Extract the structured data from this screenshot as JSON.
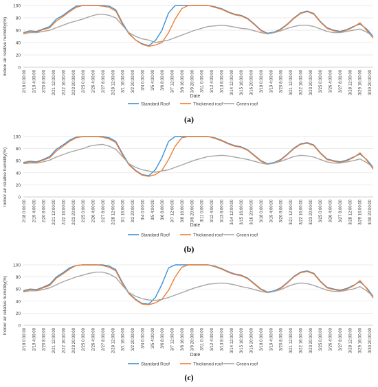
{
  "figure": {
    "x_tick_labels": [
      "2/18 0:00:00",
      "2/19 4:00:00",
      "2/20 8:00:00",
      "2/21 12:00:00",
      "2/22 16:00:00",
      "2/23 20:00:00",
      "2/25 0:00:00",
      "2/26 4:00:00",
      "2/27 8:00:00",
      "2/28 12:00:00",
      "3/1 16:00:00",
      "3/2 20:00:00",
      "3/4 0:00:00",
      "3/5 4:00:00",
      "3/6 8:00:00",
      "3/7 12:00:00",
      "3/8 16:00:00",
      "3/9 20:00:00",
      "3/11 0:00:00",
      "3/12 4:00:00",
      "3/13 8:00:00",
      "3/14 12:00:00",
      "3/15 16:00:00",
      "3/16 20:00:00",
      "3/18 0:00:00",
      "3/19 4:00:00",
      "3/20 8:00:00",
      "3/21 12:00:00",
      "3/22 16:00:00",
      "3/23 20:00:00",
      "3/25 0:00:00",
      "3/26 4:00:00",
      "3/27 8:00:00",
      "3/28 12:00:00",
      "3/29 16:00:00",
      "3/30 20:00:00"
    ],
    "y_ticks": [
      0,
      20,
      40,
      60,
      80,
      100
    ]
  },
  "chart_data": [
    {
      "type": "line",
      "caption": "(a)",
      "ylabel": "Indoor air relative humidity(%)",
      "xlabel": "Date",
      "ylim": [
        0,
        100
      ],
      "grid": true,
      "legend": "bottom",
      "series": [
        {
          "name": "Standard Roof",
          "color": "#3b8fd4",
          "values": [
            56,
            59,
            58,
            62,
            66,
            78,
            84,
            92,
            99,
            100,
            100,
            100,
            100,
            99,
            93,
            72,
            55,
            44,
            38,
            35,
            43,
            60,
            88,
            100,
            100,
            100,
            100,
            100,
            100,
            98,
            95,
            90,
            86,
            84,
            79,
            70,
            60,
            55,
            57,
            62,
            70,
            80,
            88,
            91,
            87,
            74,
            64,
            60,
            58,
            61,
            66,
            70,
            62,
            50
          ]
        },
        {
          "name": "Thickened roof",
          "color": "#ee7d31",
          "values": [
            55,
            58,
            57,
            61,
            64,
            75,
            82,
            90,
            97,
            100,
            100,
            100,
            99,
            97,
            91,
            70,
            54,
            44,
            37,
            34,
            36,
            40,
            56,
            78,
            95,
            100,
            100,
            100,
            100,
            97,
            94,
            89,
            85,
            83,
            78,
            69,
            59,
            54,
            56,
            61,
            69,
            79,
            87,
            90,
            86,
            73,
            63,
            59,
            57,
            60,
            65,
            72,
            60,
            47
          ]
        },
        {
          "name": "Green roof",
          "color": "#a5a5a5",
          "values": [
            54,
            56,
            56,
            58,
            60,
            64,
            68,
            72,
            75,
            78,
            82,
            85,
            86,
            84,
            80,
            68,
            56,
            50,
            46,
            44,
            40,
            42,
            44,
            48,
            52,
            56,
            60,
            63,
            66,
            67,
            68,
            67,
            65,
            63,
            62,
            59,
            56,
            54,
            56,
            59,
            63,
            66,
            68,
            68,
            66,
            62,
            58,
            56,
            56,
            58,
            60,
            62,
            57,
            50
          ]
        }
      ]
    },
    {
      "type": "line",
      "caption": "(b)",
      "ylabel": "Indoor air relative humidity(%)",
      "xlabel": "Date",
      "ylim": [
        0,
        100
      ],
      "grid": true,
      "legend": "bottom",
      "series": [
        {
          "name": "Standard Roof",
          "color": "#3b8fd4",
          "values": [
            57,
            59,
            58,
            62,
            67,
            79,
            86,
            94,
            99,
            100,
            100,
            100,
            100,
            98,
            92,
            72,
            54,
            44,
            37,
            35,
            45,
            65,
            92,
            100,
            100,
            100,
            100,
            100,
            100,
            98,
            94,
            89,
            85,
            83,
            78,
            69,
            60,
            55,
            57,
            62,
            71,
            81,
            88,
            90,
            86,
            73,
            63,
            60,
            58,
            61,
            66,
            71,
            62,
            49
          ]
        },
        {
          "name": "Thickened roof",
          "color": "#ee7d31",
          "values": [
            56,
            58,
            57,
            61,
            65,
            76,
            84,
            92,
            98,
            100,
            100,
            100,
            99,
            96,
            90,
            70,
            53,
            43,
            36,
            34,
            37,
            44,
            62,
            84,
            98,
            100,
            100,
            100,
            100,
            97,
            93,
            88,
            84,
            82,
            77,
            68,
            59,
            54,
            56,
            61,
            70,
            80,
            87,
            89,
            85,
            72,
            62,
            59,
            57,
            60,
            65,
            73,
            61,
            46
          ]
        },
        {
          "name": "Green roof",
          "color": "#a5a5a5",
          "values": [
            55,
            56,
            56,
            58,
            61,
            66,
            70,
            74,
            77,
            80,
            84,
            86,
            87,
            84,
            79,
            67,
            55,
            49,
            45,
            43,
            41,
            43,
            45,
            49,
            53,
            57,
            61,
            64,
            67,
            68,
            69,
            68,
            66,
            64,
            62,
            59,
            56,
            54,
            56,
            59,
            63,
            67,
            69,
            68,
            66,
            62,
            58,
            56,
            56,
            58,
            60,
            63,
            57,
            49
          ]
        }
      ]
    },
    {
      "type": "line",
      "caption": "(c)",
      "ylabel": "Indoor air relative humidity(%)",
      "xlabel": "Date",
      "ylim": [
        0,
        100
      ],
      "grid": true,
      "legend": "bottom",
      "series": [
        {
          "name": "Standard Roof",
          "color": "#3b8fd4",
          "values": [
            57,
            60,
            59,
            63,
            68,
            80,
            87,
            95,
            99,
            100,
            100,
            100,
            100,
            98,
            92,
            71,
            53,
            43,
            36,
            35,
            46,
            68,
            95,
            100,
            100,
            100,
            100,
            100,
            100,
            98,
            94,
            89,
            85,
            83,
            78,
            69,
            60,
            55,
            57,
            62,
            71,
            81,
            88,
            90,
            86,
            73,
            63,
            60,
            58,
            61,
            66,
            72,
            62,
            48
          ]
        },
        {
          "name": "Thickened roof",
          "color": "#ee7d31",
          "values": [
            56,
            59,
            58,
            62,
            66,
            78,
            85,
            93,
            99,
            100,
            100,
            100,
            99,
            96,
            90,
            69,
            52,
            42,
            35,
            34,
            37,
            43,
            58,
            80,
            96,
            100,
            100,
            100,
            100,
            97,
            93,
            88,
            84,
            82,
            77,
            68,
            59,
            54,
            56,
            61,
            70,
            80,
            87,
            89,
            85,
            72,
            62,
            59,
            57,
            60,
            65,
            74,
            61,
            45
          ]
        },
        {
          "name": "Green roof",
          "color": "#a5a5a5",
          "values": [
            55,
            57,
            57,
            59,
            62,
            67,
            72,
            76,
            80,
            83,
            86,
            88,
            88,
            85,
            79,
            66,
            54,
            48,
            44,
            42,
            41,
            43,
            46,
            50,
            54,
            58,
            62,
            65,
            68,
            69,
            70,
            69,
            67,
            64,
            62,
            59,
            56,
            54,
            56,
            59,
            64,
            68,
            70,
            69,
            66,
            62,
            58,
            56,
            56,
            58,
            60,
            64,
            57,
            48
          ]
        }
      ]
    }
  ]
}
